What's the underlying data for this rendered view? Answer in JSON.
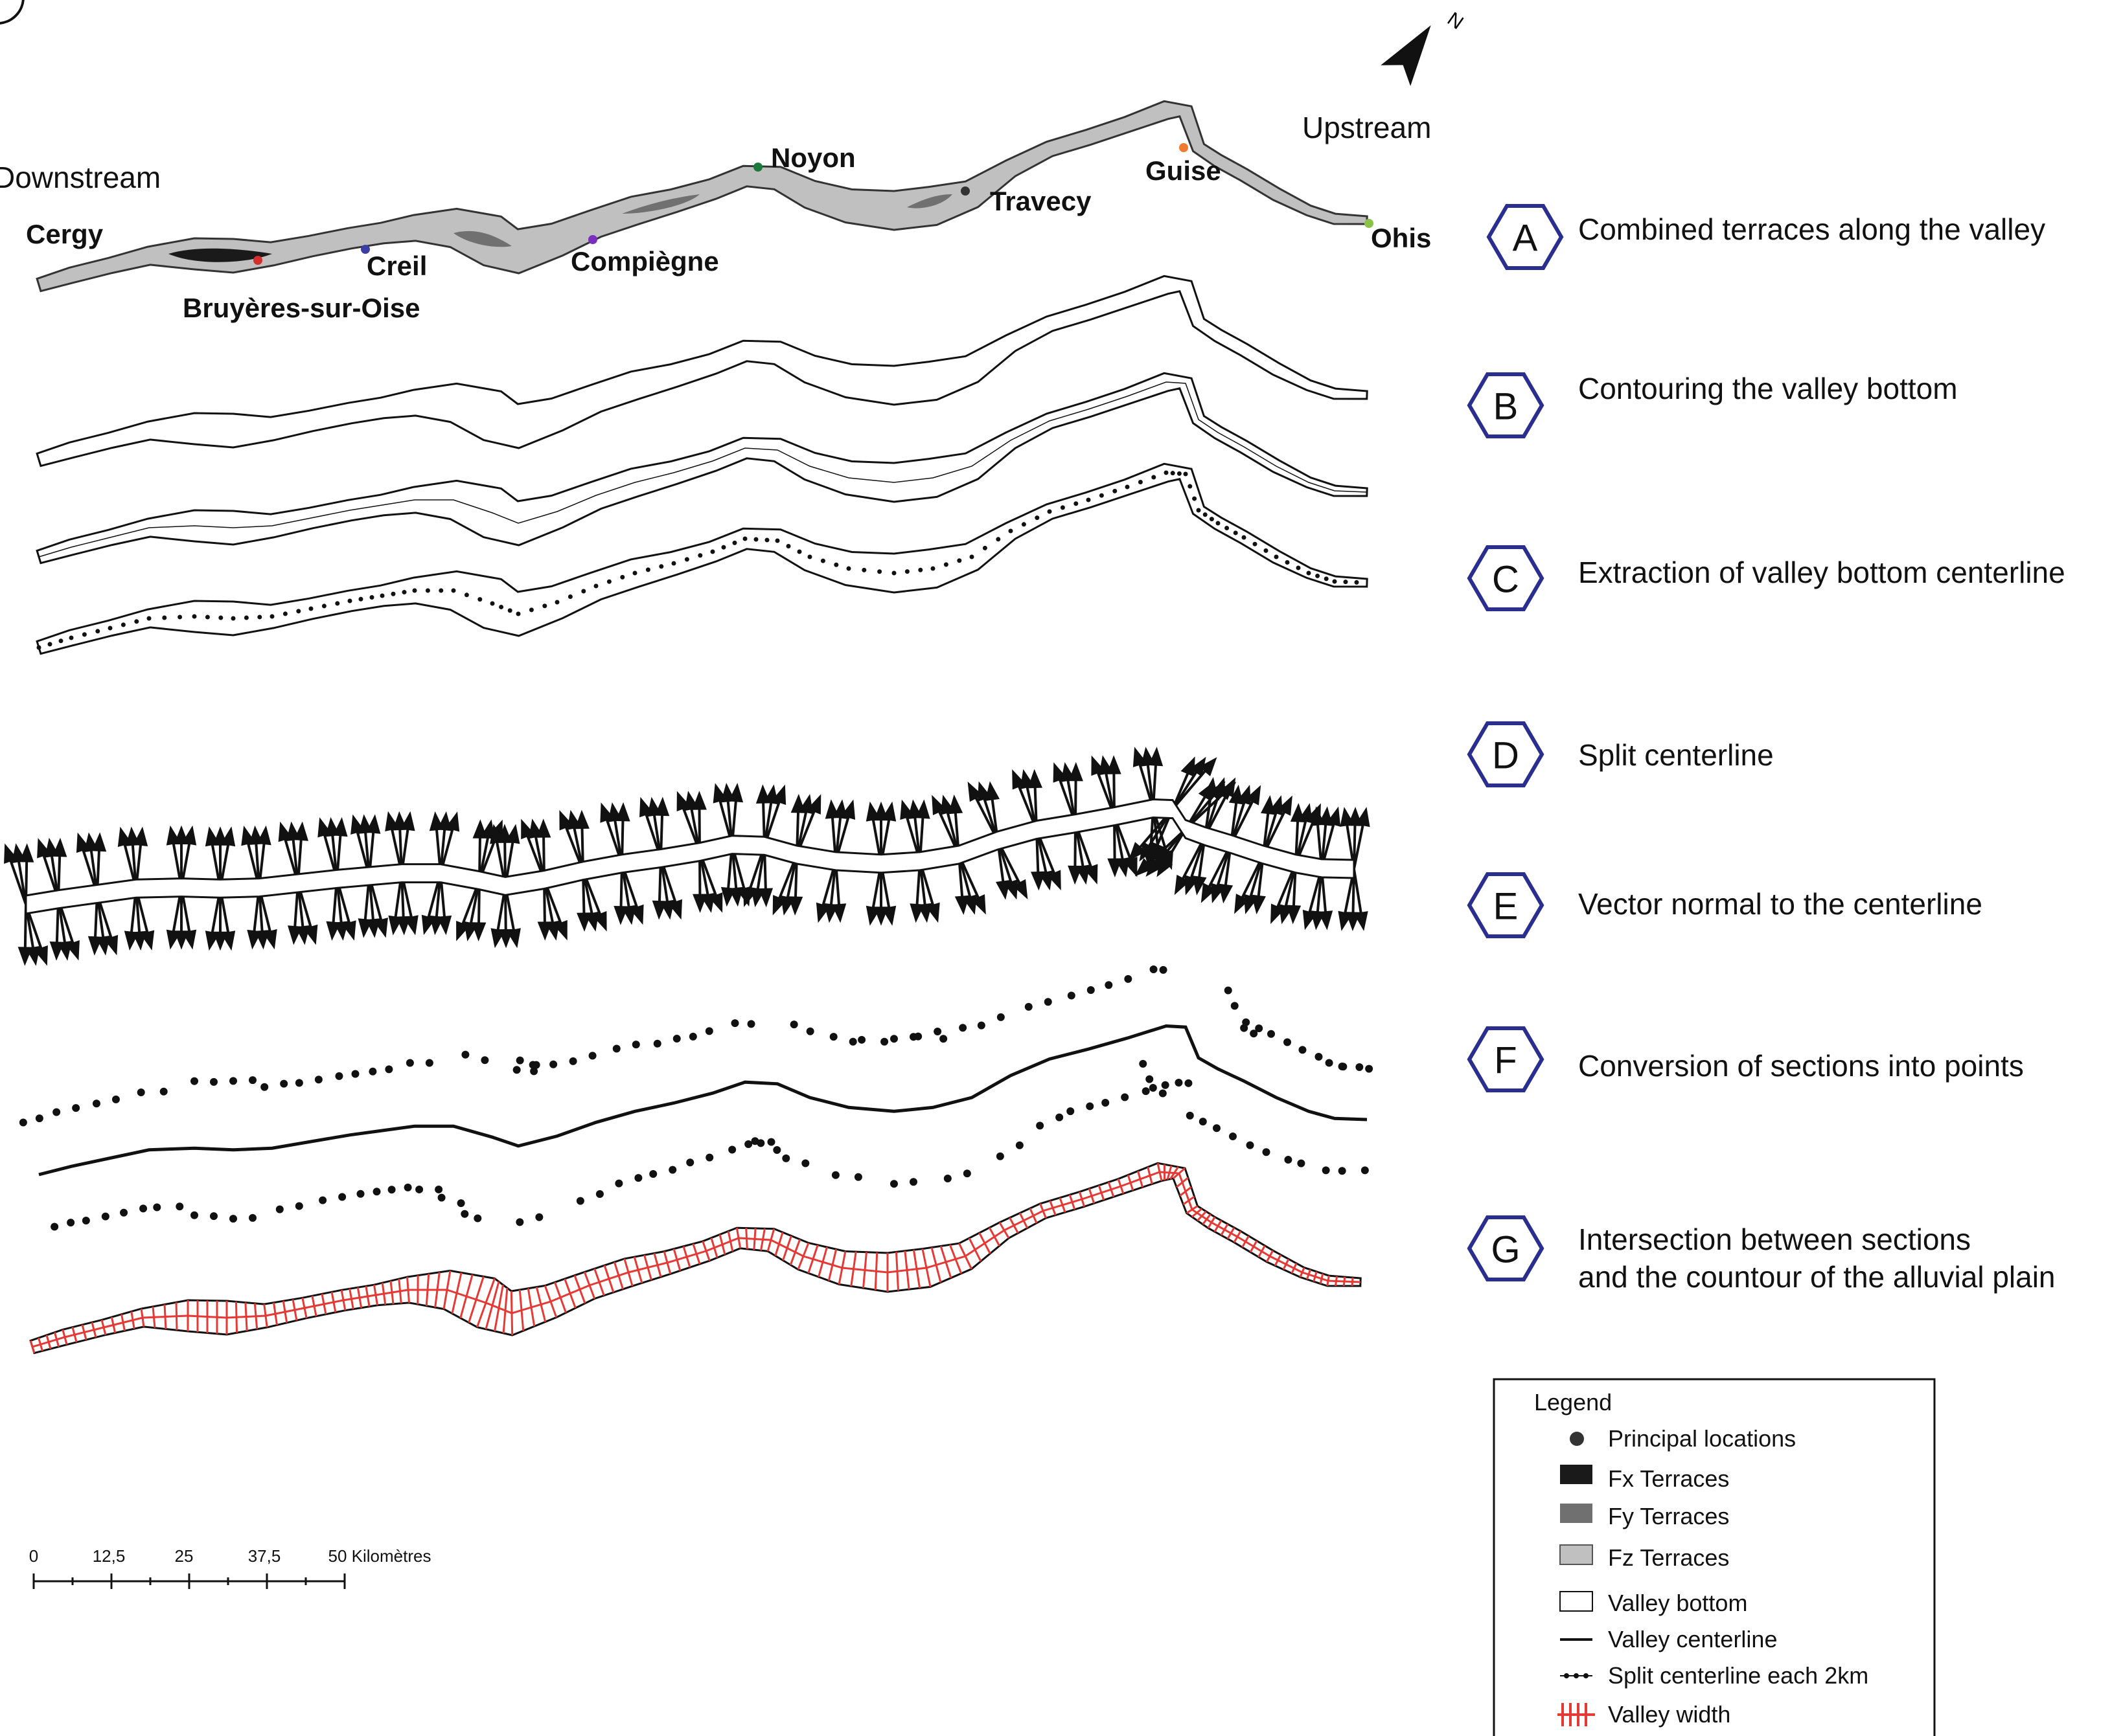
{
  "directions": {
    "downstream": "Downstream",
    "upstream": "Upstream"
  },
  "compass": {
    "letter": "N",
    "icon": "north-arrow-icon"
  },
  "places": [
    {
      "name": "Cergy",
      "color": "#d32f2f"
    },
    {
      "name": "Bruyères-sur-Oise",
      "color": "#d32f2f"
    },
    {
      "name": "Creil",
      "color": "#3b3fa5"
    },
    {
      "name": "Compiègne",
      "color": "#7b2fbf"
    },
    {
      "name": "Noyon",
      "color": "#1b7a3a"
    },
    {
      "name": "Travecy",
      "color": "#333333"
    },
    {
      "name": "Guise",
      "color": "#f07b2e"
    },
    {
      "name": "Ohis",
      "color": "#8bc34a"
    }
  ],
  "steps": [
    {
      "letter": "A",
      "text": "Combined terraces along the valley"
    },
    {
      "letter": "B",
      "text": "Contouring the valley bottom"
    },
    {
      "letter": "C",
      "text": "Extraction of valley bottom centerline"
    },
    {
      "letter": "D",
      "text": "Split centerline"
    },
    {
      "letter": "E",
      "text": "Vector normal to the centerline"
    },
    {
      "letter": "F",
      "text": "Conversion of sections into points"
    },
    {
      "letter": "G",
      "text": "Intersection between sections",
      "text2": "and the countour of the alluvial plain"
    }
  ],
  "legend": {
    "title": "Legend",
    "items": [
      {
        "label": "Principal locations",
        "icon": "dot-icon"
      },
      {
        "label": "Fx Terraces",
        "icon": "swatch-icon",
        "color": "#1a1a1a"
      },
      {
        "label": "Fy Terraces",
        "icon": "swatch-icon",
        "color": "#707070"
      },
      {
        "label": "Fz Terraces",
        "icon": "swatch-icon",
        "color": "#c0c0c0"
      },
      {
        "label": "Valley bottom",
        "icon": "outline-box-icon"
      },
      {
        "label": "Valley centerline",
        "icon": "line-icon"
      },
      {
        "label": "Split centerline each 2km",
        "icon": "dotted-line-icon"
      },
      {
        "label": "Valley width",
        "icon": "hatch-icon",
        "color": "#e53935"
      }
    ]
  },
  "scale_bar": {
    "ticks": [
      "0",
      "12,5",
      "25",
      "37,5",
      "50 Kilomètres"
    ]
  },
  "colors": {
    "step_hex_border": "#2a2f8f",
    "terrace_fz": "#c0c0c0",
    "terrace_fy": "#707070",
    "terrace_fx": "#1a1a1a",
    "width_lines": "#e53935"
  }
}
